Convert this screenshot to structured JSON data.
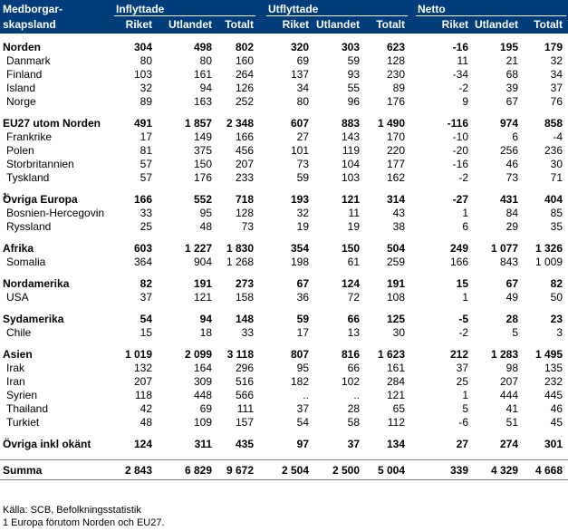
{
  "header": {
    "col0_line1": "Medborgar-",
    "col0_line2": "skapsland",
    "groups": [
      "Inflyttade",
      "Utflyttade",
      "Netto"
    ],
    "subcols": [
      "Riket",
      "Utlandet",
      "Totalt",
      "Riket",
      "Utlandet",
      "Totalt",
      "Riket",
      "Utlandet",
      "Totalt"
    ]
  },
  "sections": [
    {
      "rows": [
        {
          "label": "Norden",
          "bold": true,
          "v": [
            "304",
            "498",
            "802",
            "320",
            "303",
            "623",
            "-16",
            "195",
            "179"
          ]
        },
        {
          "label": "Danmark",
          "v": [
            "80",
            "80",
            "160",
            "69",
            "59",
            "128",
            "11",
            "21",
            "32"
          ]
        },
        {
          "label": "Finland",
          "v": [
            "103",
            "161",
            "264",
            "137",
            "93",
            "230",
            "-34",
            "68",
            "34"
          ]
        },
        {
          "label": "Island",
          "v": [
            "32",
            "94",
            "126",
            "34",
            "55",
            "89",
            "-2",
            "39",
            "37"
          ]
        },
        {
          "label": "Norge",
          "v": [
            "89",
            "163",
            "252",
            "80",
            "96",
            "176",
            "9",
            "67",
            "76"
          ]
        }
      ]
    },
    {
      "rows": [
        {
          "label": "EU27 utom Norden",
          "bold": true,
          "v": [
            "491",
            "1 857",
            "2 348",
            "607",
            "883",
            "1 490",
            "-116",
            "974",
            "858"
          ]
        },
        {
          "label": "Frankrike",
          "v": [
            "17",
            "149",
            "166",
            "27",
            "143",
            "170",
            "-10",
            "6",
            "-4"
          ]
        },
        {
          "label": "Polen",
          "v": [
            "81",
            "375",
            "456",
            "101",
            "119",
            "220",
            "-20",
            "256",
            "236"
          ]
        },
        {
          "label": "Storbritannien",
          "v": [
            "57",
            "150",
            "207",
            "73",
            "104",
            "177",
            "-16",
            "46",
            "30"
          ]
        },
        {
          "label": "Tyskland",
          "v": [
            "57",
            "176",
            "233",
            "59",
            "103",
            "162",
            "-2",
            "73",
            "71"
          ]
        }
      ]
    },
    {
      "rows": [
        {
          "label": "Övriga Europa",
          "sup": "1",
          "bold": true,
          "v": [
            "166",
            "552",
            "718",
            "193",
            "121",
            "314",
            "-27",
            "431",
            "404"
          ]
        },
        {
          "label": "Bosnien-Hercegovin",
          "v": [
            "33",
            "95",
            "128",
            "32",
            "11",
            "43",
            "1",
            "84",
            "85"
          ]
        },
        {
          "label": "Ryssland",
          "v": [
            "25",
            "48",
            "73",
            "19",
            "19",
            "38",
            "6",
            "29",
            "35"
          ]
        }
      ]
    },
    {
      "rows": [
        {
          "label": "Afrika",
          "bold": true,
          "v": [
            "603",
            "1 227",
            "1 830",
            "354",
            "150",
            "504",
            "249",
            "1 077",
            "1 326"
          ]
        },
        {
          "label": "Somalia",
          "v": [
            "364",
            "904",
            "1 268",
            "198",
            "61",
            "259",
            "166",
            "843",
            "1 009"
          ]
        }
      ]
    },
    {
      "rows": [
        {
          "label": "Nordamerika",
          "bold": true,
          "v": [
            "82",
            "191",
            "273",
            "67",
            "124",
            "191",
            "15",
            "67",
            "82"
          ]
        },
        {
          "label": "USA",
          "v": [
            "37",
            "121",
            "158",
            "36",
            "72",
            "108",
            "1",
            "49",
            "50"
          ]
        }
      ]
    },
    {
      "rows": [
        {
          "label": "Sydamerika",
          "bold": true,
          "v": [
            "54",
            "94",
            "148",
            "59",
            "66",
            "125",
            "-5",
            "28",
            "23"
          ]
        },
        {
          "label": "Chile",
          "v": [
            "15",
            "18",
            "33",
            "17",
            "13",
            "30",
            "-2",
            "5",
            "3"
          ]
        }
      ]
    },
    {
      "rows": [
        {
          "label": "Asien",
          "bold": true,
          "v": [
            "1 019",
            "2 099",
            "3 118",
            "807",
            "816",
            "1 623",
            "212",
            "1 283",
            "1 495"
          ]
        },
        {
          "label": "Irak",
          "v": [
            "132",
            "164",
            "296",
            "95",
            "66",
            "161",
            "37",
            "98",
            "135"
          ]
        },
        {
          "label": "Iran",
          "v": [
            "207",
            "309",
            "516",
            "182",
            "102",
            "284",
            "25",
            "207",
            "232"
          ]
        },
        {
          "label": "Syrien",
          "v": [
            "118",
            "448",
            "566",
            "..",
            "..",
            "121",
            "1",
            "444",
            "445"
          ]
        },
        {
          "label": "Thailand",
          "v": [
            "42",
            "69",
            "111",
            "37",
            "28",
            "65",
            "5",
            "41",
            "46"
          ]
        },
        {
          "label": "Turkiet",
          "v": [
            "48",
            "109",
            "157",
            "54",
            "58",
            "112",
            "-6",
            "51",
            "45"
          ]
        }
      ]
    },
    {
      "rows": [
        {
          "label": "Övriga inkl okänt",
          "bold": true,
          "v": [
            "124",
            "311",
            "435",
            "97",
            "37",
            "134",
            "27",
            "274",
            "301"
          ]
        }
      ]
    }
  ],
  "total": {
    "label": "Summa",
    "v": [
      "2 843",
      "6 829",
      "9 672",
      "2 504",
      "2 500",
      "5 004",
      "339",
      "4 329",
      "4 668"
    ]
  },
  "footnotes": [
    "Källa:  SCB, Befolkningsstatistik",
    "1  Europa förutom Norden och EU27."
  ]
}
